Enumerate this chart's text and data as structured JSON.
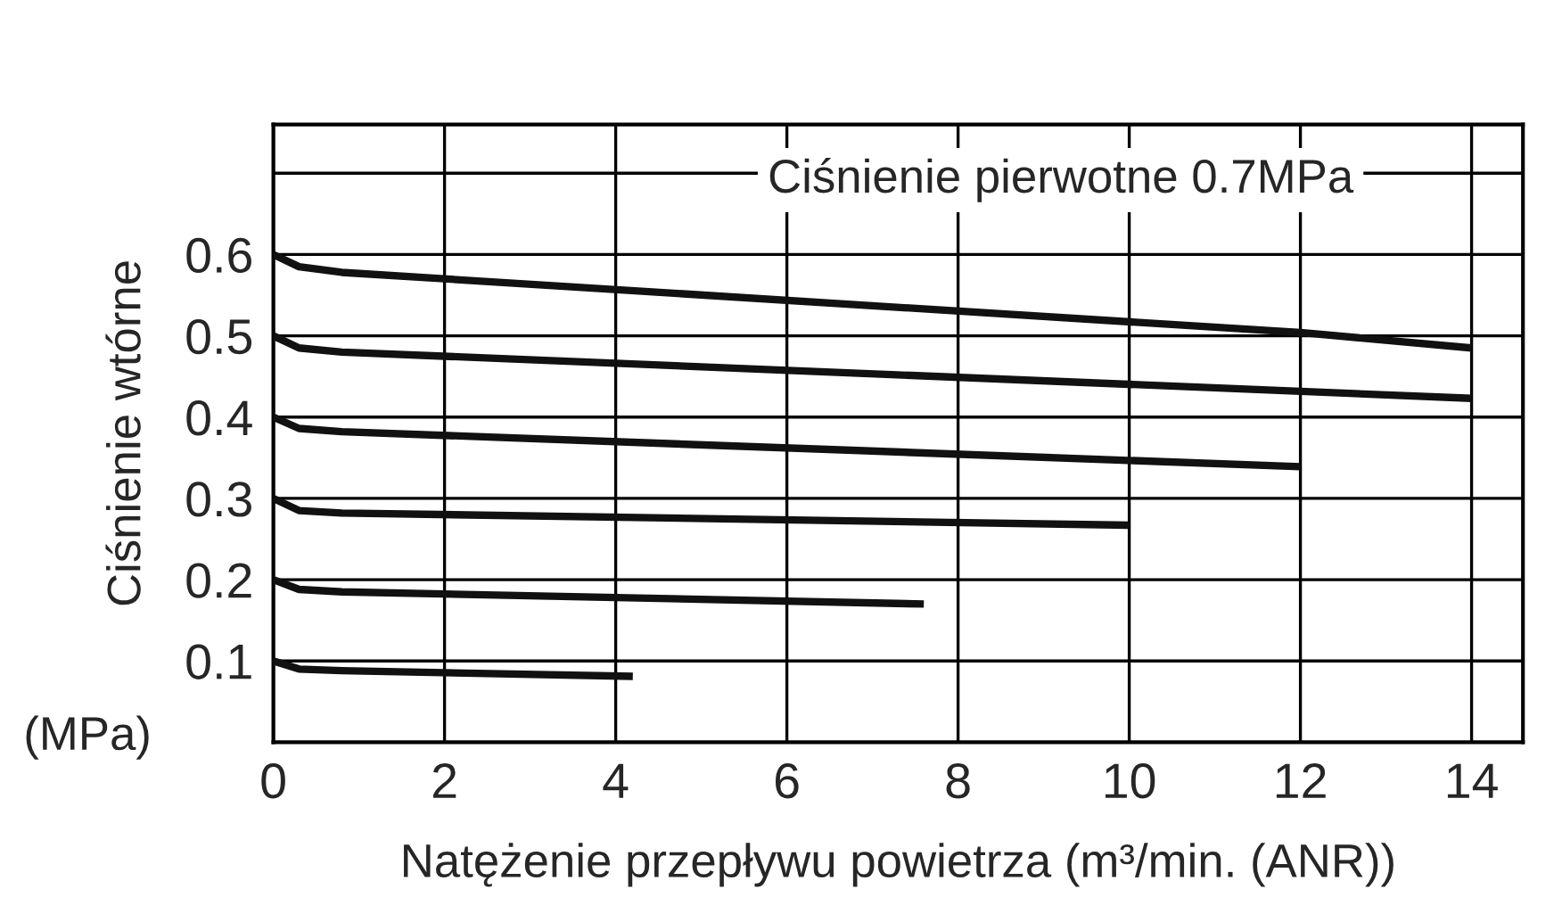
{
  "chart_data": {
    "type": "line",
    "xlabel": "Natężenie przepływu powietrza (m³/min. (ANR))",
    "ylabel": "Ciśnienie wtórne",
    "annotations": [
      "Ciśnienie pierwotne 0.7MPa",
      "(MPa)"
    ],
    "series": [
      {
        "color": "#111111",
        "x": [
          0,
          0.3,
          0.8,
          12,
          14
        ],
        "values": [
          0.6,
          0.585,
          0.578,
          0.504,
          0.485
        ]
      },
      {
        "color": "#111111",
        "x": [
          0,
          0.3,
          0.8,
          14
        ],
        "values": [
          0.5,
          0.485,
          0.48,
          0.423
        ]
      },
      {
        "color": "#111111",
        "x": [
          0,
          0.3,
          0.8,
          12
        ],
        "values": [
          0.4,
          0.386,
          0.382,
          0.339
        ]
      },
      {
        "color": "#111111",
        "x": [
          0,
          0.3,
          0.8,
          10
        ],
        "values": [
          0.3,
          0.285,
          0.282,
          0.267
        ]
      },
      {
        "color": "#111111",
        "x": [
          0,
          0.3,
          0.8,
          7.6
        ],
        "values": [
          0.2,
          0.188,
          0.185,
          0.17
        ]
      },
      {
        "color": "#111111",
        "x": [
          0,
          0.3,
          0.8,
          4.2
        ],
        "values": [
          0.1,
          0.09,
          0.088,
          0.081
        ]
      }
    ],
    "xlim": [
      0,
      14.6
    ],
    "xticks": [
      0,
      2,
      4,
      6,
      8,
      10,
      12,
      14
    ],
    "ylim": [
      0,
      0.76
    ],
    "yticks": [
      0.1,
      0.2,
      0.3,
      0.4,
      0.5,
      0.6,
      {
        "value": 0.7,
        "label": null
      }
    ],
    "grid": true,
    "legend": false,
    "line_style": "solid",
    "marker": "none"
  }
}
